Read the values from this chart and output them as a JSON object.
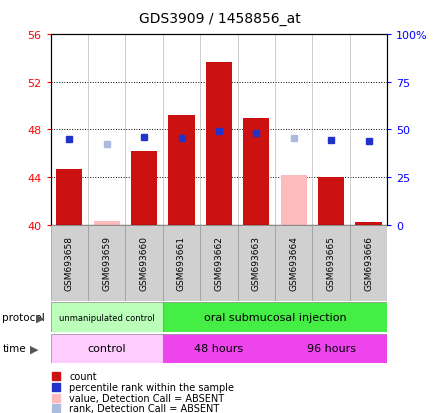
{
  "title": "GDS3909 / 1458856_at",
  "samples": [
    "GSM693658",
    "GSM693659",
    "GSM693660",
    "GSM693661",
    "GSM693662",
    "GSM693663",
    "GSM693664",
    "GSM693665",
    "GSM693666"
  ],
  "bar_values": [
    44.7,
    40.3,
    46.2,
    49.2,
    53.7,
    49.0,
    44.2,
    44.0,
    40.2
  ],
  "bar_absent": [
    false,
    true,
    false,
    false,
    false,
    false,
    true,
    false,
    false
  ],
  "percentile_values": [
    47.2,
    46.8,
    47.4,
    47.3,
    47.9,
    47.7,
    47.3,
    47.1,
    47.0
  ],
  "percentile_absent": [
    false,
    true,
    false,
    false,
    false,
    false,
    true,
    false,
    false
  ],
  "ylim": [
    40,
    56
  ],
  "yticks_left": [
    40,
    44,
    48,
    52,
    56
  ],
  "ytick_right_labels": [
    "0",
    "25",
    "50",
    "75",
    "100%"
  ],
  "bar_color_present": "#cc1111",
  "bar_color_absent": "#ffbbbb",
  "dot_color_present": "#2233cc",
  "dot_color_absent": "#aabbdd",
  "protocol_groups": [
    {
      "label": "unmanipulated control",
      "start": 0,
      "end": 3,
      "color": "#bbffbb"
    },
    {
      "label": "oral submucosal injection",
      "start": 3,
      "end": 9,
      "color": "#44ee44"
    }
  ],
  "time_groups": [
    {
      "label": "control",
      "start": 0,
      "end": 3,
      "color": "#ffccff"
    },
    {
      "label": "48 hours",
      "start": 3,
      "end": 6,
      "color": "#ee44ee"
    },
    {
      "label": "96 hours",
      "start": 6,
      "end": 9,
      "color": "#ee44ee"
    }
  ],
  "legend_items": [
    {
      "label": "count",
      "color": "#cc1111"
    },
    {
      "label": "percentile rank within the sample",
      "color": "#2233cc"
    },
    {
      "label": "value, Detection Call = ABSENT",
      "color": "#ffbbbb"
    },
    {
      "label": "rank, Detection Call = ABSENT",
      "color": "#aabbdd"
    }
  ]
}
